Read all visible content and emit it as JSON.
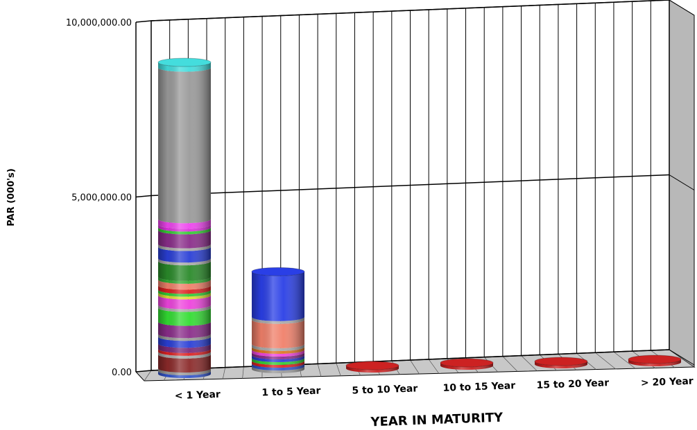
{
  "chart_data": {
    "type": "bar",
    "stacked": true,
    "style": "3d-cylinder",
    "title": "",
    "xlabel": "YEAR IN MATURITY",
    "ylabel": "PAR (000's)",
    "ylim": [
      0,
      10000000
    ],
    "yticks": [
      0,
      5000000,
      10000000
    ],
    "ytick_labels": [
      "0.00",
      "5,000,000.00",
      "10,000,000.00"
    ],
    "grid": true,
    "legend": "none",
    "categories": [
      "< 1 Year",
      "1 to 5 Year",
      "5 to 10 Year",
      "10 to 15 Year",
      "15 to 20 Year",
      "> 20 Year"
    ],
    "segments": [
      [
        {
          "value": 50000,
          "color": "#3355cc"
        },
        {
          "value": 80000,
          "color": "#999999"
        },
        {
          "value": 400000,
          "color": "#8b2a2a"
        },
        {
          "value": 80000,
          "color": "#aaaaaa"
        },
        {
          "value": 80000,
          "color": "#dd2222"
        },
        {
          "value": 150000,
          "color": "#7a2a7a"
        },
        {
          "value": 200000,
          "color": "#2a3fd6"
        },
        {
          "value": 80000,
          "color": "#999999"
        },
        {
          "value": 350000,
          "color": "#8a2d8a"
        },
        {
          "value": 400000,
          "color": "#33dd33"
        },
        {
          "value": 60000,
          "color": "#aaaaaa"
        },
        {
          "value": 280000,
          "color": "#ee44dd"
        },
        {
          "value": 80000,
          "color": "#dddd33"
        },
        {
          "value": 60000,
          "color": "#33cc33"
        },
        {
          "value": 120000,
          "color": "#dd2222"
        },
        {
          "value": 170000,
          "color": "#f0806a"
        },
        {
          "value": 60000,
          "color": "#33aa33"
        },
        {
          "value": 450000,
          "color": "#2a8a2a"
        },
        {
          "value": 60000,
          "color": "#aaaaaa"
        },
        {
          "value": 330000,
          "color": "#2a3fd6"
        },
        {
          "value": 80000,
          "color": "#aaaaaa"
        },
        {
          "value": 400000,
          "color": "#8a2d8a"
        },
        {
          "value": 80000,
          "color": "#33cc33"
        },
        {
          "value": 60000,
          "color": "#dd33dd"
        },
        {
          "value": 160000,
          "color": "#ee44ee"
        },
        {
          "value": 4350000,
          "color": "#9a9a9a"
        },
        {
          "value": 150000,
          "color": "#44dddd"
        }
      ],
      [
        {
          "value": 40000,
          "color": "#999999"
        },
        {
          "value": 80000,
          "color": "#3355cc"
        },
        {
          "value": 60000,
          "color": "#dd2222"
        },
        {
          "value": 80000,
          "color": "#33cc33"
        },
        {
          "value": 60000,
          "color": "#2a3fd6"
        },
        {
          "value": 60000,
          "color": "#8a2d8a"
        },
        {
          "value": 60000,
          "color": "#ee44dd"
        },
        {
          "value": 60000,
          "color": "#dd7722"
        },
        {
          "value": 80000,
          "color": "#aaaaaa"
        },
        {
          "value": 700000,
          "color": "#f0806a"
        },
        {
          "value": 60000,
          "color": "#aaaaaa"
        },
        {
          "value": 1300000,
          "color": "#2a3fe6"
        }
      ],
      [
        {
          "value": 70000,
          "color": "#cc2222"
        }
      ],
      [
        {
          "value": 50000,
          "color": "#cc2222"
        }
      ],
      [
        {
          "value": 50000,
          "color": "#cc2222"
        }
      ],
      [
        {
          "value": 50000,
          "color": "#cc2222"
        }
      ]
    ],
    "colors": {
      "grid": "#000000",
      "floor": "#c8c8c8",
      "side_wall": "#b8b8b8"
    }
  }
}
